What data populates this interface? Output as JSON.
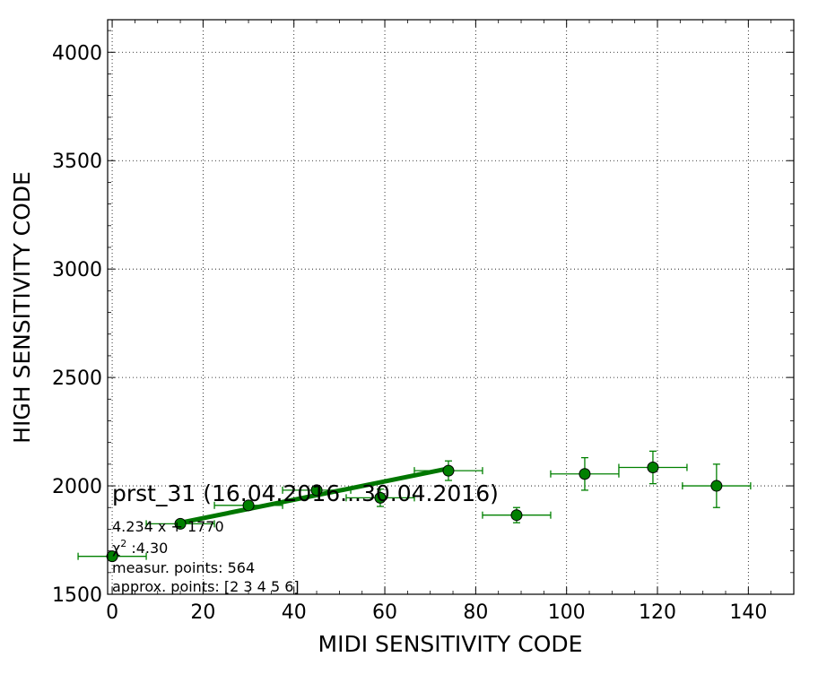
{
  "chart_data": {
    "type": "scatter",
    "xlabel": "MIDI SENSITIVITY CODE",
    "ylabel": "HIGH SENSITIVITY CODE",
    "xlim": [
      -1,
      150
    ],
    "ylim": [
      1500,
      4150
    ],
    "xticks": [
      0,
      20,
      40,
      60,
      80,
      100,
      120,
      140
    ],
    "yticks": [
      1500,
      2000,
      2500,
      3000,
      3500,
      4000
    ],
    "grid": true,
    "points": [
      {
        "x": 0,
        "y": 1675,
        "xerr": 7.5,
        "yerr": 0
      },
      {
        "x": 15,
        "y": 1825,
        "xerr": 7.5,
        "yerr": 10
      },
      {
        "x": 30,
        "y": 1910,
        "xerr": 7.5,
        "yerr": 15
      },
      {
        "x": 45,
        "y": 1980,
        "xerr": 7.5,
        "yerr": 15
      },
      {
        "x": 59,
        "y": 1945,
        "xerr": 7.5,
        "yerr": 40
      },
      {
        "x": 74,
        "y": 2070,
        "xerr": 7.5,
        "yerr": 45
      },
      {
        "x": 89,
        "y": 1865,
        "xerr": 7.5,
        "yerr": 35
      },
      {
        "x": 104,
        "y": 2055,
        "xerr": 7.5,
        "yerr": 75
      },
      {
        "x": 119,
        "y": 2085,
        "xerr": 7.5,
        "yerr": 75
      },
      {
        "x": 133,
        "y": 2000,
        "xerr": 7.5,
        "yerr": 100
      }
    ],
    "fit": {
      "x": [
        15,
        74
      ],
      "y": [
        1830,
        2080
      ]
    },
    "colors": {
      "marker": "#008000",
      "fit": "#007700",
      "errorbar": "#008000"
    },
    "annotations": {
      "title": "prst_31 (16.04.2016...30.04.2016)",
      "equation": "4.234 x + 1770",
      "chi2_symbol": "χ",
      "chi2_sup": "2",
      "chi2_value": " :4.30",
      "measur_points": "measur. points: 564",
      "approx_points": "approx. points: [2 3 4 5 6]"
    }
  }
}
